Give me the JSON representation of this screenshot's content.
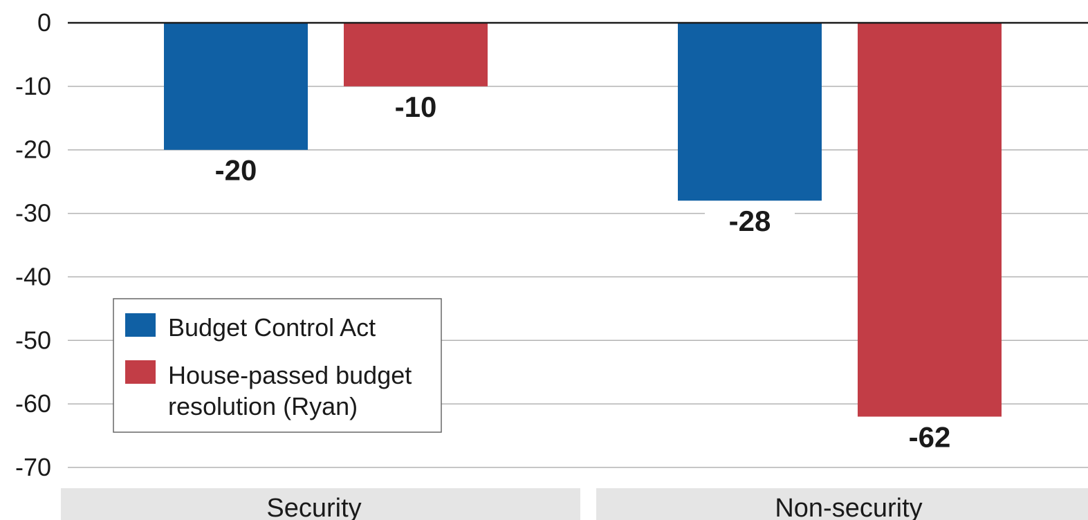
{
  "chart_data": {
    "type": "bar",
    "categories": [
      "Security",
      "Non-security"
    ],
    "series": [
      {
        "name": "Budget Control Act",
        "values": [
          -20,
          -28
        ],
        "color": "#1060a4"
      },
      {
        "name": "House-passed budget resolution (Ryan)",
        "legend_lines": [
          "House-passed budget",
          "resolution (Ryan)"
        ],
        "values": [
          -10,
          -62
        ],
        "color": "#c23d46"
      }
    ],
    "data_labels": [
      [
        "-20",
        "-28"
      ],
      [
        "-10",
        "-62"
      ]
    ],
    "ylim": [
      -70,
      0
    ],
    "yticks": [
      0,
      -10,
      -20,
      -30,
      -40,
      -50,
      -60,
      -70
    ],
    "ytick_labels": [
      "0",
      "-10",
      "-20",
      "-30",
      "-40",
      "-50",
      "-60",
      "-70"
    ],
    "grid": true,
    "legend_position": "lower-left",
    "title": "",
    "xlabel": "",
    "ylabel": ""
  }
}
